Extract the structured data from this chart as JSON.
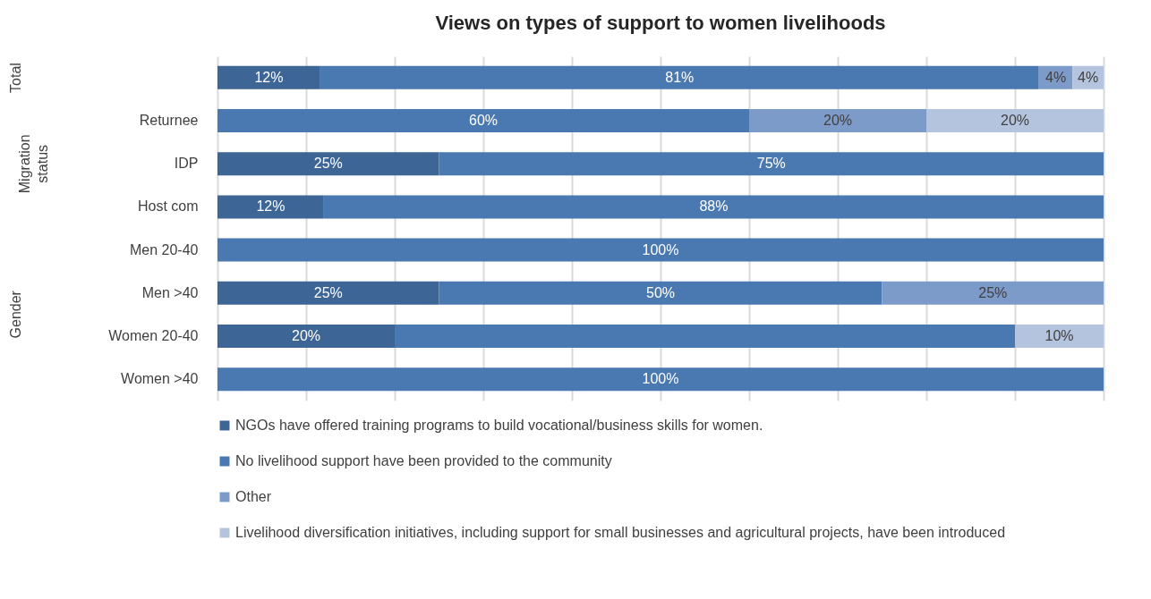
{
  "chart_data": {
    "type": "bar",
    "orientation": "horizontal",
    "stacked": true,
    "title": "Views on types of support to women livelihoods",
    "categories": [
      null,
      "Returnee",
      "IDP",
      "Host com",
      "Men 20-40",
      "Men >40",
      "Women 20-40",
      "Women >40"
    ],
    "series": [
      {
        "name": "NGOs have offered training programs to build vocational/business skills for women.",
        "color": "#3d6596",
        "values": [
          11.6,
          null,
          25,
          12,
          null,
          25,
          20,
          null
        ],
        "value_labels": [
          "12%",
          null,
          "25%",
          "12%",
          null,
          "25%",
          "20%",
          null
        ]
      },
      {
        "name": "No livelihood support have been provided to the community",
        "color": "#4a78b0",
        "values": [
          81.1,
          60,
          75,
          88,
          100,
          50,
          70,
          100
        ],
        "value_labels": [
          "81%",
          "60%",
          "75%",
          "88%",
          "100%",
          "50%",
          null,
          "100%"
        ]
      },
      {
        "name": "Other",
        "color": "#7d9bc8",
        "values": [
          3.8,
          20,
          null,
          null,
          null,
          25,
          null,
          null
        ],
        "value_labels": [
          "4%",
          "20%",
          null,
          null,
          null,
          "25%",
          null,
          null
        ]
      },
      {
        "name": "Livelihood diversification initiatives, including support for small businesses and agricultural projects, have been introduced",
        "color": "#b4c4df",
        "values": [
          3.5,
          20,
          null,
          null,
          null,
          null,
          10,
          null
        ],
        "value_labels": [
          "4%",
          "20%",
          null,
          null,
          null,
          null,
          "10%",
          null
        ]
      }
    ],
    "xlim": [
      0,
      100
    ],
    "xticks": [
      {
        "value": 0,
        "label": null
      },
      {
        "value": 10,
        "label": null
      },
      {
        "value": 20,
        "label": null
      },
      {
        "value": 30,
        "label": null
      },
      {
        "value": 40,
        "label": null
      },
      {
        "value": 50,
        "label": null
      },
      {
        "value": 60,
        "label": null
      },
      {
        "value": 70,
        "label": null
      },
      {
        "value": 80,
        "label": null
      },
      {
        "value": 90,
        "label": null
      },
      {
        "value": 100,
        "label": null
      }
    ],
    "tick_labels": "y",
    "grid": "x",
    "legend": "bottom left",
    "annotations": [
      "Total",
      "Migration status",
      "Gender"
    ]
  }
}
